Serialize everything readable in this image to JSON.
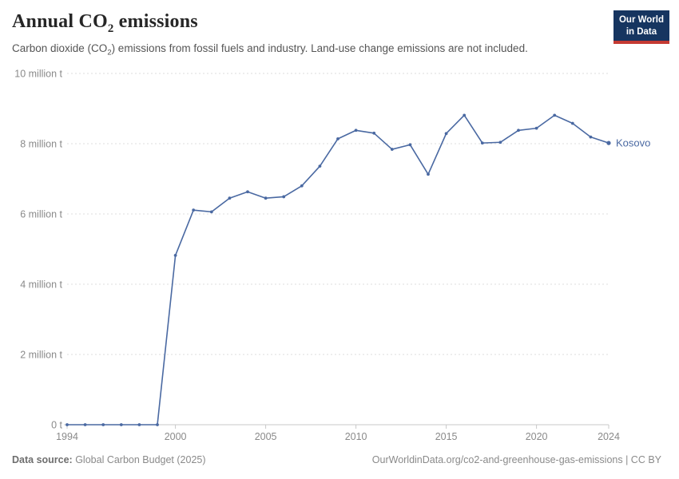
{
  "header": {
    "title": {
      "pre": "Annual CO",
      "sub": "2",
      "post": " emissions"
    },
    "subtitle": {
      "pre": "Carbon dioxide (CO",
      "sub": "2",
      "post": ") emissions from fossil fuels and industry. Land-use change emissions are not included."
    },
    "logo": {
      "line1": "Our World",
      "line2": "in Data"
    }
  },
  "footer": {
    "source_label": "Data source:",
    "source_value": " Global Carbon Budget (2025)",
    "credit": "OurWorldinData.org/co2-and-greenhouse-gas-emissions | CC BY"
  },
  "colors": {
    "line": "#4A69A2",
    "grid": "#DDDDDD",
    "axis": "#C8C8C8",
    "tick_label": "#8A8A8A",
    "title": "#262626",
    "subtitle": "#555555",
    "footer": "#8A8A8A",
    "logo_bg": "#163560",
    "logo_red": "#C53A33"
  },
  "chart_data": {
    "type": "line",
    "title": "Annual CO₂ emissions",
    "subtitle": "Carbon dioxide (CO₂) emissions from fossil fuels and industry. Land-use change emissions are not included.",
    "xlabel": "",
    "ylabel": "",
    "xlim": [
      1994,
      2024
    ],
    "ylim": [
      0,
      10
    ],
    "grid": "horizontal-dashed",
    "legend_position": "end-of-line-label",
    "x_ticks": [
      1994,
      2000,
      2005,
      2010,
      2015,
      2020,
      2024
    ],
    "y_ticks": [
      {
        "value": 0,
        "label": "0 t"
      },
      {
        "value": 2,
        "label": "2 million t"
      },
      {
        "value": 4,
        "label": "4 million t"
      },
      {
        "value": 6,
        "label": "6 million t"
      },
      {
        "value": 8,
        "label": "8 million t"
      },
      {
        "value": 10,
        "label": "10 million t"
      }
    ],
    "unit": "million tonnes",
    "series": [
      {
        "name": "Kosovo",
        "color": "#4A69A2",
        "x": [
          1994,
          1995,
          1996,
          1997,
          1998,
          1999,
          2000,
          2001,
          2002,
          2003,
          2004,
          2005,
          2006,
          2007,
          2008,
          2009,
          2010,
          2011,
          2012,
          2013,
          2014,
          2015,
          2016,
          2017,
          2018,
          2019,
          2020,
          2021,
          2022,
          2023,
          2024
        ],
        "values": [
          0,
          0,
          0,
          0,
          0,
          0,
          4.82,
          6.11,
          6.06,
          6.45,
          6.63,
          6.45,
          6.49,
          6.8,
          7.36,
          8.14,
          8.38,
          8.3,
          7.84,
          7.97,
          7.13,
          8.29,
          8.81,
          8.02,
          8.04,
          8.38,
          8.44,
          8.81,
          8.58,
          8.19,
          8.02
        ]
      }
    ]
  }
}
